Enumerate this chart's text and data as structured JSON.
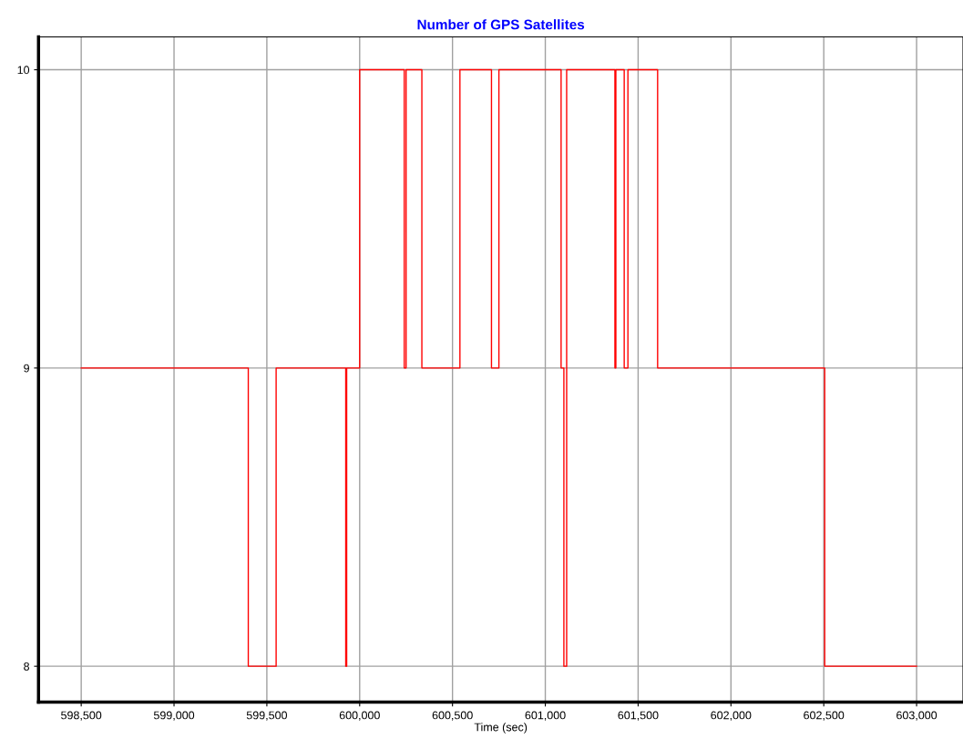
{
  "chart_data": {
    "type": "step",
    "title": "Number of GPS Satellites",
    "xlabel": "Time (sec)",
    "x": [
      598500,
      599400,
      599550,
      599925,
      599930,
      600000,
      600240,
      600250,
      600335,
      600540,
      600710,
      600750,
      601085,
      601100,
      601115,
      601375,
      601380,
      601425,
      601445,
      601605,
      602505,
      603000
    ],
    "series": [
      {
        "color": "#ff0000",
        "values": [
          9,
          8,
          9,
          8,
          9,
          10,
          9,
          10,
          9,
          10,
          9,
          10,
          9,
          8,
          10,
          9,
          10,
          9,
          10,
          9,
          8,
          8
        ]
      }
    ],
    "xlim": [
      598270,
      603250
    ],
    "ylim": [
      7.88,
      10.11
    ],
    "xticks": [
      {
        "value": 598500,
        "label": "598,500"
      },
      {
        "value": 599000,
        "label": "599,000"
      },
      {
        "value": 599500,
        "label": "599,500"
      },
      {
        "value": 600000,
        "label": "600,000"
      },
      {
        "value": 600500,
        "label": "600,500"
      },
      {
        "value": 601000,
        "label": "601,000"
      },
      {
        "value": 601500,
        "label": "601,500"
      },
      {
        "value": 602000,
        "label": "602,000"
      },
      {
        "value": 602500,
        "label": "602,500"
      },
      {
        "value": 603000,
        "label": "603,000"
      }
    ],
    "yticks": [
      8,
      9,
      10
    ],
    "grid": true,
    "line_style": "solid",
    "marker": "none"
  }
}
